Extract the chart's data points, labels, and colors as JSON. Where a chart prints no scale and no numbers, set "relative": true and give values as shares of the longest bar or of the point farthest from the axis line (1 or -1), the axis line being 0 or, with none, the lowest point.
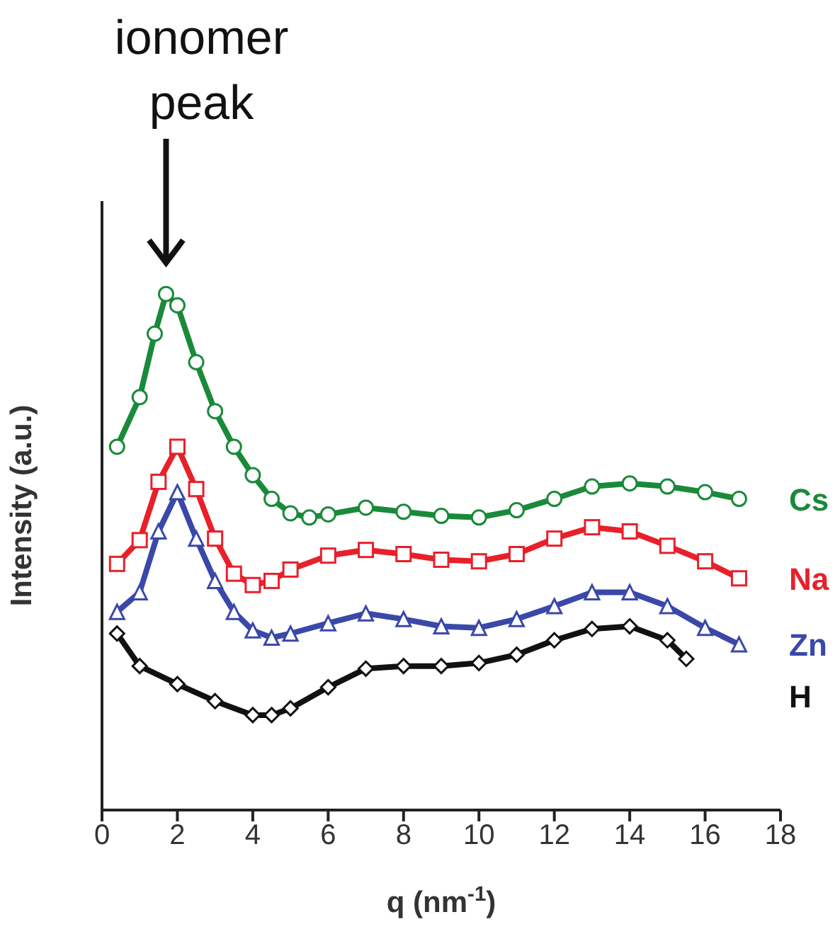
{
  "chart_data": {
    "type": "line",
    "relative": true,
    "xlabel": "q (nm$^{-1}$)",
    "ylabel": "Intensity (a.u.)",
    "xlim": [
      0,
      18
    ],
    "xticks": [
      0,
      2,
      4,
      6,
      8,
      10,
      12,
      14,
      16,
      18
    ],
    "annotations": [
      "ionomer peak"
    ],
    "series": [
      {
        "name": "Cs",
        "color": "#1a8a3a",
        "marker": "circle",
        "x": [
          0.4,
          1,
          1.4,
          1.7,
          2,
          2.5,
          3,
          3.5,
          4,
          4.5,
          5,
          5.5,
          6,
          7,
          8,
          9,
          10,
          11,
          12,
          13,
          14,
          15,
          16,
          16.9
        ],
        "values": [
          0.704,
          0.8,
          0.923,
          1,
          0.978,
          0.868,
          0.773,
          0.704,
          0.649,
          0.603,
          0.575,
          0.567,
          0.573,
          0.586,
          0.578,
          0.57,
          0.567,
          0.581,
          0.603,
          0.627,
          0.633,
          0.627,
          0.616,
          0.603
        ]
      },
      {
        "name": "Na",
        "color": "#e8202a",
        "marker": "square",
        "x": [
          0.4,
          1,
          1.5,
          2,
          2.5,
          3,
          3.5,
          4,
          4.5,
          5,
          6,
          7,
          8,
          9,
          10,
          11,
          12,
          13,
          14,
          15,
          16,
          16.9
        ],
        "values": [
          0.477,
          0.523,
          0.636,
          0.704,
          0.622,
          0.526,
          0.458,
          0.436,
          0.444,
          0.466,
          0.493,
          0.504,
          0.496,
          0.485,
          0.482,
          0.496,
          0.526,
          0.548,
          0.54,
          0.512,
          0.482,
          0.449
        ]
      },
      {
        "name": "Zn",
        "color": "#3a48a8",
        "marker": "triangle",
        "x": [
          0.4,
          1,
          1.5,
          2,
          2.5,
          3,
          3.5,
          4,
          4.5,
          5,
          6,
          7,
          8,
          9,
          10,
          11,
          12,
          13,
          14,
          15,
          16,
          16.9
        ],
        "values": [
          0.384,
          0.422,
          0.54,
          0.616,
          0.526,
          0.444,
          0.384,
          0.348,
          0.334,
          0.342,
          0.362,
          0.381,
          0.37,
          0.356,
          0.353,
          0.37,
          0.395,
          0.422,
          0.422,
          0.395,
          0.353,
          0.321
        ]
      },
      {
        "name": "H",
        "color": "#111111",
        "marker": "diamond",
        "x": [
          0.4,
          1,
          2,
          3,
          4,
          4.5,
          5,
          6,
          7,
          8,
          9,
          10,
          11,
          12,
          13,
          14,
          15,
          15.5
        ],
        "values": [
          0.342,
          0.279,
          0.244,
          0.211,
          0.184,
          0.184,
          0.197,
          0.238,
          0.274,
          0.279,
          0.279,
          0.285,
          0.301,
          0.329,
          0.351,
          0.356,
          0.329,
          0.293
        ]
      }
    ]
  }
}
